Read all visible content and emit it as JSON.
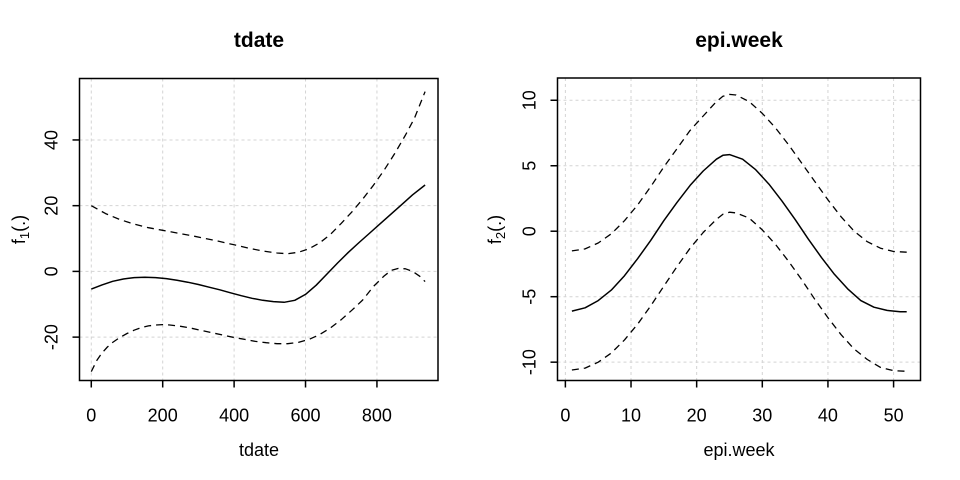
{
  "figure": {
    "background": "#ffffff",
    "axis_color": "#000000",
    "grid_color": "#d4d4d4",
    "curve_color": "#000000"
  },
  "chart_data": [
    {
      "type": "line",
      "title": "tdate",
      "xlabel": "tdate",
      "ylabel": "f1(.)",
      "ylabel_parts": {
        "base": "f",
        "sub": "1",
        "rest": "(.)"
      },
      "xlim": [
        -33,
        971
      ],
      "ylim": [
        -33.2,
        58.7
      ],
      "x_ticks": [
        0,
        200,
        400,
        600,
        800
      ],
      "y_ticks": [
        -20,
        0,
        20,
        40
      ],
      "grid": "dashed-lightgray-at-ticks",
      "legend": "none",
      "series": [
        {
          "name": "fit",
          "style": "solid",
          "points": [
            [
              0,
              -5.4
            ],
            [
              30,
              -4.1
            ],
            [
              60,
              -3.0
            ],
            [
              90,
              -2.3
            ],
            [
              120,
              -1.9
            ],
            [
              150,
              -1.8
            ],
            [
              180,
              -1.9
            ],
            [
              210,
              -2.2
            ],
            [
              240,
              -2.7
            ],
            [
              270,
              -3.3
            ],
            [
              300,
              -4.0
            ],
            [
              330,
              -4.8
            ],
            [
              360,
              -5.6
            ],
            [
              390,
              -6.5
            ],
            [
              420,
              -7.4
            ],
            [
              450,
              -8.2
            ],
            [
              480,
              -8.8
            ],
            [
              510,
              -9.2
            ],
            [
              540,
              -9.4
            ],
            [
              570,
              -8.8
            ],
            [
              600,
              -7.0
            ],
            [
              630,
              -4.2
            ],
            [
              660,
              -0.8
            ],
            [
              690,
              2.6
            ],
            [
              720,
              5.8
            ],
            [
              750,
              8.8
            ],
            [
              780,
              11.7
            ],
            [
              810,
              14.6
            ],
            [
              840,
              17.5
            ],
            [
              870,
              20.4
            ],
            [
              900,
              23.3
            ],
            [
              935,
              26.3
            ]
          ]
        },
        {
          "name": "upper-ci",
          "style": "dashed",
          "points": [
            [
              0,
              20.0
            ],
            [
              40,
              17.6
            ],
            [
              80,
              15.8
            ],
            [
              120,
              14.4
            ],
            [
              160,
              13.3
            ],
            [
              200,
              12.5
            ],
            [
              240,
              11.7
            ],
            [
              280,
              10.9
            ],
            [
              320,
              10.0
            ],
            [
              360,
              9.1
            ],
            [
              400,
              8.1
            ],
            [
              440,
              7.1
            ],
            [
              480,
              6.2
            ],
            [
              520,
              5.6
            ],
            [
              550,
              5.4
            ],
            [
              580,
              5.8
            ],
            [
              610,
              6.9
            ],
            [
              640,
              8.7
            ],
            [
              670,
              11.3
            ],
            [
              700,
              14.6
            ],
            [
              730,
              18.1
            ],
            [
              760,
              22.0
            ],
            [
              790,
              26.2
            ],
            [
              820,
              30.8
            ],
            [
              850,
              35.9
            ],
            [
              880,
              41.5
            ],
            [
              905,
              46.6
            ],
            [
              935,
              54.7
            ]
          ]
        },
        {
          "name": "lower-ci",
          "style": "dashed",
          "points": [
            [
              0,
              -30.5
            ],
            [
              15,
              -27.2
            ],
            [
              30,
              -24.8
            ],
            [
              45,
              -23.0
            ],
            [
              60,
              -21.6
            ],
            [
              80,
              -20.1
            ],
            [
              100,
              -18.9
            ],
            [
              120,
              -17.9
            ],
            [
              140,
              -17.1
            ],
            [
              160,
              -16.6
            ],
            [
              180,
              -16.3
            ],
            [
              200,
              -16.2
            ],
            [
              220,
              -16.3
            ],
            [
              250,
              -16.7
            ],
            [
              280,
              -17.3
            ],
            [
              310,
              -18.0
            ],
            [
              340,
              -18.7
            ],
            [
              370,
              -19.4
            ],
            [
              400,
              -20.1
            ],
            [
              430,
              -20.7
            ],
            [
              460,
              -21.3
            ],
            [
              490,
              -21.7
            ],
            [
              520,
              -22.0
            ],
            [
              550,
              -22.0
            ],
            [
              580,
              -21.6
            ],
            [
              610,
              -20.7
            ],
            [
              640,
              -19.2
            ],
            [
              670,
              -17.2
            ],
            [
              700,
              -14.7
            ],
            [
              730,
              -11.8
            ],
            [
              760,
              -8.7
            ],
            [
              790,
              -4.6
            ],
            [
              820,
              -1.4
            ],
            [
              840,
              0.3
            ],
            [
              860,
              0.9
            ],
            [
              880,
              0.8
            ],
            [
              900,
              0.0
            ],
            [
              920,
              -1.5
            ],
            [
              935,
              -3.1
            ]
          ]
        }
      ]
    },
    {
      "type": "line",
      "title": "epi.week",
      "xlabel": "epi.week",
      "ylabel": "f2(.)",
      "ylabel_parts": {
        "base": "f",
        "sub": "2",
        "rest": "(.)"
      },
      "xlim": [
        -1.2,
        54.1
      ],
      "ylim": [
        -11.4,
        11.7
      ],
      "x_ticks": [
        0,
        10,
        20,
        30,
        40,
        50
      ],
      "y_ticks": [
        -10,
        -5,
        0,
        5,
        10
      ],
      "grid": "dashed-lightgray-at-ticks",
      "legend": "none",
      "series": [
        {
          "name": "fit",
          "style": "solid",
          "points": [
            [
              1,
              -6.1
            ],
            [
              3,
              -5.85
            ],
            [
              5,
              -5.3
            ],
            [
              7,
              -4.5
            ],
            [
              9,
              -3.4
            ],
            [
              11,
              -2.1
            ],
            [
              13,
              -0.7
            ],
            [
              15,
              0.8
            ],
            [
              17,
              2.2
            ],
            [
              19,
              3.5
            ],
            [
              21,
              4.6
            ],
            [
              23,
              5.5
            ],
            [
              24,
              5.8
            ],
            [
              25,
              5.85
            ],
            [
              27,
              5.5
            ],
            [
              29,
              4.7
            ],
            [
              31,
              3.6
            ],
            [
              33,
              2.3
            ],
            [
              35,
              0.9
            ],
            [
              37,
              -0.6
            ],
            [
              39,
              -2.0
            ],
            [
              41,
              -3.3
            ],
            [
              43,
              -4.4
            ],
            [
              45,
              -5.3
            ],
            [
              47,
              -5.8
            ],
            [
              49,
              -6.05
            ],
            [
              51,
              -6.15
            ],
            [
              52,
              -6.15
            ]
          ]
        },
        {
          "name": "upper-ci",
          "style": "dashed",
          "points": [
            [
              1,
              -1.5
            ],
            [
              3,
              -1.35
            ],
            [
              5,
              -0.9
            ],
            [
              7,
              -0.2
            ],
            [
              9,
              0.8
            ],
            [
              11,
              2.0
            ],
            [
              13,
              3.4
            ],
            [
              15,
              4.9
            ],
            [
              17,
              6.3
            ],
            [
              19,
              7.7
            ],
            [
              21,
              8.8
            ],
            [
              23,
              9.9
            ],
            [
              24,
              10.3
            ],
            [
              25,
              10.45
            ],
            [
              26,
              10.4
            ],
            [
              28,
              9.9
            ],
            [
              30,
              9.0
            ],
            [
              32,
              7.9
            ],
            [
              34,
              6.6
            ],
            [
              36,
              5.2
            ],
            [
              38,
              3.8
            ],
            [
              40,
              2.4
            ],
            [
              42,
              1.1
            ],
            [
              44,
              0.0
            ],
            [
              46,
              -0.8
            ],
            [
              48,
              -1.3
            ],
            [
              50,
              -1.55
            ],
            [
              52,
              -1.6
            ]
          ]
        },
        {
          "name": "lower-ci",
          "style": "dashed",
          "points": [
            [
              1,
              -10.6
            ],
            [
              3,
              -10.45
            ],
            [
              5,
              -10.0
            ],
            [
              7,
              -9.3
            ],
            [
              9,
              -8.3
            ],
            [
              11,
              -7.1
            ],
            [
              13,
              -5.7
            ],
            [
              15,
              -4.2
            ],
            [
              17,
              -2.7
            ],
            [
              19,
              -1.3
            ],
            [
              21,
              -0.1
            ],
            [
              23,
              0.9
            ],
            [
              24,
              1.3
            ],
            [
              25,
              1.45
            ],
            [
              26,
              1.4
            ],
            [
              28,
              1.0
            ],
            [
              30,
              0.1
            ],
            [
              32,
              -1.0
            ],
            [
              34,
              -2.3
            ],
            [
              36,
              -3.7
            ],
            [
              38,
              -5.2
            ],
            [
              40,
              -6.6
            ],
            [
              42,
              -7.9
            ],
            [
              44,
              -9.0
            ],
            [
              46,
              -9.8
            ],
            [
              48,
              -10.4
            ],
            [
              50,
              -10.65
            ],
            [
              52,
              -10.7
            ]
          ]
        }
      ]
    }
  ]
}
